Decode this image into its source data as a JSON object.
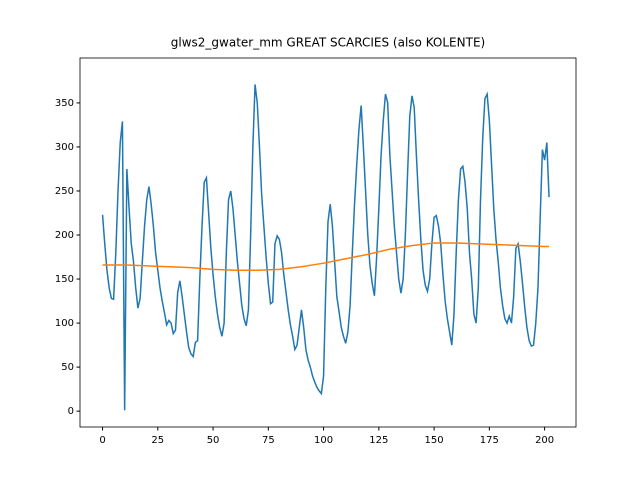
{
  "chart_data": {
    "type": "line",
    "title": "glws2_gwater_mm GREAT SCARCIES (also KOLENTE)",
    "xlim": [
      -10.2,
      214.2
    ],
    "xticks": [
      0,
      25,
      50,
      75,
      100,
      125,
      150,
      175,
      200
    ],
    "ylim": [
      -18,
      401
    ],
    "yticks": [
      0,
      50,
      100,
      150,
      200,
      250,
      300,
      350
    ],
    "series": [
      {
        "color": "#1f77b4",
        "x": [
          0,
          1,
          2,
          3,
          4,
          5,
          6,
          7,
          8,
          9,
          10,
          11,
          12,
          13,
          14,
          15,
          16,
          17,
          18,
          19,
          20,
          21,
          22,
          23,
          24,
          25,
          26,
          27,
          28,
          29,
          30,
          31,
          32,
          33,
          34,
          35,
          36,
          37,
          38,
          39,
          40,
          41,
          42,
          43,
          44,
          45,
          46,
          47,
          48,
          49,
          50,
          51,
          52,
          53,
          54,
          55,
          56,
          57,
          58,
          59,
          60,
          61,
          62,
          63,
          64,
          65,
          66,
          67,
          68,
          69,
          70,
          71,
          72,
          73,
          74,
          75,
          76,
          77,
          78,
          79,
          80,
          81,
          82,
          83,
          84,
          85,
          86,
          87,
          88,
          89,
          90,
          91,
          92,
          93,
          94,
          95,
          96,
          97,
          98,
          99,
          100,
          101,
          102,
          103,
          104,
          105,
          106,
          107,
          108,
          109,
          110,
          111,
          112,
          113,
          114,
          115,
          116,
          117,
          118,
          119,
          120,
          121,
          122,
          123,
          124,
          125,
          126,
          127,
          128,
          129,
          130,
          131,
          132,
          133,
          134,
          135,
          136,
          137,
          138,
          139,
          140,
          141,
          142,
          143,
          144,
          145,
          146,
          147,
          148,
          149,
          150,
          151,
          152,
          153,
          154,
          155,
          156,
          157,
          158,
          159,
          160,
          161,
          162,
          163,
          164,
          165,
          166,
          167,
          168,
          169,
          170,
          171,
          172,
          173,
          174,
          175,
          176,
          177,
          178,
          179,
          180,
          181,
          182,
          183,
          184,
          185,
          186,
          187,
          188,
          189,
          190,
          191,
          192,
          193,
          194,
          195,
          196,
          197,
          198,
          199,
          200,
          201,
          202
        ],
        "values": [
          223,
          190,
          160,
          140,
          128,
          127,
          180,
          250,
          305,
          329,
          1,
          275,
          230,
          190,
          170,
          140,
          117,
          128,
          170,
          210,
          240,
          255,
          235,
          210,
          180,
          160,
          140,
          125,
          112,
          98,
          103,
          100,
          88,
          92,
          135,
          148,
          130,
          110,
          90,
          72,
          65,
          62,
          78,
          80,
          150,
          210,
          260,
          265,
          225,
          185,
          155,
          130,
          110,
          95,
          85,
          100,
          180,
          240,
          250,
          230,
          200,
          170,
          145,
          120,
          105,
          97,
          115,
          200,
          300,
          371,
          350,
          300,
          245,
          210,
          175,
          145,
          122,
          124,
          190,
          199,
          195,
          180,
          155,
          135,
          115,
          98,
          85,
          70,
          75,
          95,
          115,
          95,
          70,
          58,
          50,
          40,
          33,
          27,
          23,
          20,
          40,
          140,
          215,
          235,
          210,
          170,
          130,
          113,
          95,
          85,
          77,
          90,
          120,
          180,
          235,
          280,
          320,
          347,
          300,
          250,
          200,
          165,
          145,
          131,
          175,
          230,
          290,
          330,
          360,
          350,
          290,
          250,
          210,
          180,
          150,
          134,
          150,
          200,
          270,
          335,
          358,
          345,
          290,
          240,
          195,
          160,
          143,
          136,
          150,
          190,
          220,
          222,
          210,
          190,
          155,
          125,
          105,
          90,
          75,
          110,
          180,
          240,
          275,
          278,
          260,
          230,
          180,
          150,
          110,
          100,
          140,
          240,
          310,
          355,
          360,
          330,
          280,
          230,
          195,
          170,
          140,
          120,
          105,
          100,
          108,
          100,
          130,
          185,
          190,
          170,
          145,
          118,
          95,
          80,
          74,
          75,
          100,
          140,
          220,
          297,
          285,
          305,
          243
        ]
      },
      {
        "color": "#ff7f0e",
        "x": [
          0,
          10,
          20,
          30,
          40,
          50,
          60,
          70,
          80,
          90,
          100,
          110,
          120,
          130,
          140,
          150,
          160,
          170,
          180,
          190,
          200,
          202
        ],
        "values": [
          166,
          166,
          165,
          164,
          163,
          161,
          160,
          160,
          161,
          164,
          168,
          173,
          178,
          184,
          188,
          191,
          191,
          190,
          189,
          188,
          187,
          187
        ]
      }
    ]
  }
}
